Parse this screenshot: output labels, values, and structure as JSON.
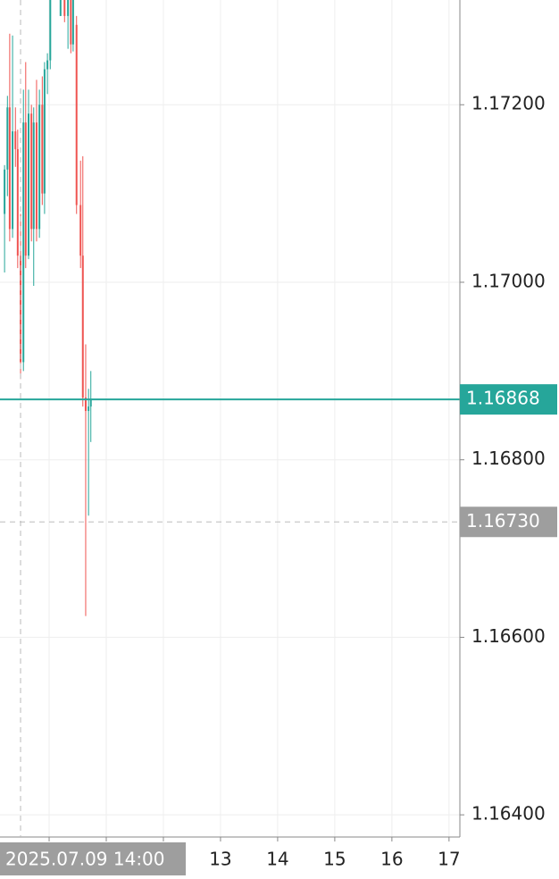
{
  "chart_data": {
    "type": "candlestick",
    "x": [
      9.22,
      9.27,
      9.31,
      9.36,
      9.41,
      9.45,
      9.5,
      9.55,
      9.59,
      9.64,
      9.69,
      9.73,
      9.78,
      9.83,
      9.88,
      9.92,
      9.97,
      10.02,
      10.2,
      10.27,
      10.33,
      10.38,
      10.42,
      10.48,
      10.55,
      10.59,
      10.64,
      10.69,
      10.73
    ],
    "open": [
      1.17077,
      1.17127,
      1.17197,
      1.1706,
      1.1717,
      1.1715,
      1.1703,
      1.1691,
      1.1718,
      1.1703,
      1.1719,
      1.1706,
      1.1718,
      1.1706,
      1.172,
      1.171,
      1.1724,
      1.1725,
      1.173,
      1.17325,
      1.173,
      1.1733,
      1.17268,
      1.1729,
      1.17087,
      1.1703,
      1.1687,
      1.16855,
      1.1686
    ],
    "high": [
      1.17132,
      1.1721,
      1.1728,
      1.17278,
      1.17197,
      1.17172,
      1.17077,
      1.17217,
      1.17248,
      1.17217,
      1.172,
      1.17197,
      1.17228,
      1.17217,
      1.17232,
      1.17248,
      1.17258,
      1.1733,
      1.1734,
      1.1734,
      1.1734,
      1.1734,
      1.1733,
      1.173,
      1.17137,
      1.17142,
      1.1693,
      1.1688,
      1.169
    ],
    "low": [
      1.17011,
      1.17097,
      1.17046,
      1.1705,
      1.1713,
      1.17016,
      1.16891,
      1.169,
      1.17016,
      1.17026,
      1.17046,
      1.16996,
      1.17046,
      1.1705,
      1.17087,
      1.17077,
      1.17212,
      1.1724,
      1.173,
      1.17293,
      1.17263,
      1.17258,
      1.1726,
      1.17077,
      1.17016,
      1.1686,
      1.16624,
      1.16737,
      1.1682
    ],
    "close": [
      1.17127,
      1.17197,
      1.1706,
      1.1717,
      1.1715,
      1.1703,
      1.1691,
      1.1718,
      1.1703,
      1.1719,
      1.1706,
      1.1718,
      1.1706,
      1.172,
      1.171,
      1.1724,
      1.1725,
      1.1732,
      1.17325,
      1.173,
      1.1733,
      1.17268,
      1.1732,
      1.17087,
      1.1703,
      1.1687,
      1.16855,
      1.1686,
      1.16868
    ],
    "up_color": "#26a69a",
    "down_color": "#ef5350",
    "xlim": [
      9.14,
      17.19
    ],
    "xticks": [
      {
        "value": 10,
        "label": null
      },
      {
        "value": 11,
        "label": null
      },
      {
        "value": 12,
        "label": null
      },
      13,
      14,
      15,
      16,
      17
    ],
    "ylim": [
      1.16375,
      1.17318
    ],
    "yticks": [
      {
        "value": 1.164,
        "label": "1.16400"
      },
      {
        "value": 1.166,
        "label": "1.16600"
      },
      {
        "value": 1.168,
        "label": "1.16800"
      },
      {
        "value": 1.17,
        "label": "1.17000"
      },
      {
        "value": 1.172,
        "label": "1.17200"
      }
    ],
    "grid": true,
    "last_price": {
      "value": 1.16868,
      "label": "1.16868",
      "color": "#26a69a"
    },
    "crosshair": {
      "x": 9.5,
      "x_label": "2025.07.09 14:00",
      "y": 1.1673,
      "y_label": "1.16730",
      "color": "#9e9e9e"
    }
  }
}
